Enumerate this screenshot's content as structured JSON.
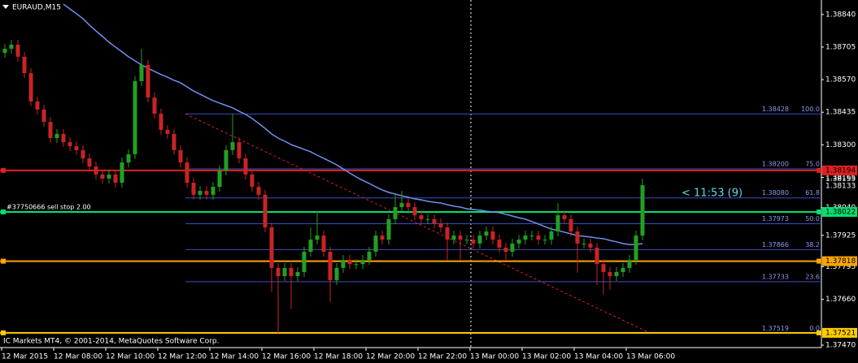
{
  "chart_data": {
    "type": "candlestick",
    "title": "EURAUD,M15",
    "footer": "IC Markets MT4, © 2001-2014, MetaQuotes Software Corp.",
    "categories": [
      "12 Mar 2015",
      null,
      null,
      null,
      null,
      null,
      null,
      null,
      "12 Mar 08:00",
      null,
      null,
      null,
      null,
      null,
      null,
      null,
      "12 Mar 10:00",
      null,
      null,
      null,
      null,
      null,
      null,
      null,
      "12 Mar 12:00",
      null,
      null,
      null,
      null,
      null,
      null,
      null,
      "12 Mar 14:00",
      null,
      null,
      null,
      null,
      null,
      null,
      null,
      "12 Mar 16:00",
      null,
      null,
      null,
      null,
      null,
      null,
      null,
      "12 Mar 18:00",
      null,
      null,
      null,
      null,
      null,
      null,
      null,
      "12 Mar 20:00",
      null,
      null,
      null,
      null,
      null,
      null,
      null,
      "12 Mar 22:00",
      null,
      null,
      null,
      null,
      null,
      null,
      null,
      "13 Mar 00:00",
      null,
      null,
      null,
      null,
      null,
      null,
      null,
      "13 Mar 02:00",
      null,
      null,
      null,
      null,
      null,
      null,
      null,
      "13 Mar 04:00",
      null,
      null,
      null,
      null,
      null,
      null,
      null,
      "13 Mar 06:00",
      null,
      null
    ],
    "open": [
      1.38681,
      1.38698,
      1.38715,
      1.38665,
      1.38597,
      1.3848,
      1.38446,
      1.38395,
      1.38328,
      1.38345,
      1.38311,
      1.38294,
      1.38278,
      1.38244,
      1.3821,
      1.38177,
      1.3816,
      1.38177,
      1.38143,
      1.38227,
      1.38261,
      1.38564,
      1.38631,
      1.38496,
      1.38429,
      1.38362,
      1.38345,
      1.38278,
      1.38227,
      1.38143,
      1.38093,
      1.38109,
      1.38093,
      1.38126,
      1.38194,
      1.38278,
      1.38311,
      1.38244,
      1.38177,
      1.38126,
      1.38093,
      1.37958,
      1.3779,
      1.37756,
      1.3779,
      1.37756,
      1.37773,
      1.37857,
      1.37907,
      1.37924,
      1.37857,
      1.37739,
      1.3779,
      1.37823,
      1.37806,
      1.37806,
      1.37823,
      1.37857,
      1.37924,
      1.37907,
      1.37992,
      1.38042,
      1.38059,
      1.38042,
      1.38008,
      1.37992,
      1.37992,
      1.37975,
      1.37958,
      1.37907,
      1.37924,
      1.37907,
      1.37907,
      1.37891,
      1.37924,
      1.37941,
      1.37907,
      1.37874,
      1.37857,
      1.37891,
      1.37907,
      1.37924,
      1.37924,
      1.37907,
      1.37907,
      1.37941,
      1.38008,
      1.37992,
      1.37941,
      1.37891,
      1.37891,
      1.37874,
      1.37806,
      1.37773,
      1.37756,
      1.37773,
      1.3779,
      1.37823,
      1.37924
    ],
    "high": [
      1.38718,
      1.38735,
      1.38735,
      1.38685,
      1.38617,
      1.385,
      1.38466,
      1.38415,
      1.38365,
      1.38365,
      1.38331,
      1.38314,
      1.38298,
      1.38264,
      1.3823,
      1.38197,
      1.38197,
      1.38197,
      1.38247,
      1.38281,
      1.38584,
      1.38698,
      1.38651,
      1.38516,
      1.38449,
      1.38382,
      1.38365,
      1.38298,
      1.38247,
      1.38163,
      1.38129,
      1.38129,
      1.38146,
      1.38214,
      1.38298,
      1.38429,
      1.38331,
      1.38264,
      1.38197,
      1.38146,
      1.38113,
      1.37978,
      1.3781,
      1.3781,
      1.3781,
      1.37793,
      1.37877,
      1.37958,
      1.38025,
      1.37944,
      1.37877,
      1.3781,
      1.37843,
      1.37843,
      1.37826,
      1.37843,
      1.37877,
      1.37944,
      1.37944,
      1.38012,
      1.38093,
      1.38109,
      1.38079,
      1.38062,
      1.38028,
      1.38012,
      1.38012,
      1.37995,
      1.37978,
      1.37944,
      1.37944,
      1.37927,
      1.37927,
      1.37944,
      1.37961,
      1.37961,
      1.37927,
      1.37894,
      1.37911,
      1.37927,
      1.37944,
      1.37944,
      1.37944,
      1.37927,
      1.37961,
      1.38059,
      1.38028,
      1.38012,
      1.37961,
      1.37911,
      1.37911,
      1.37894,
      1.37826,
      1.37793,
      1.37793,
      1.3781,
      1.37843,
      1.37944,
      1.3816
    ],
    "low": [
      1.38661,
      1.38678,
      1.38645,
      1.38577,
      1.3846,
      1.38426,
      1.38375,
      1.38308,
      1.38308,
      1.38291,
      1.38274,
      1.38258,
      1.38224,
      1.3819,
      1.38157,
      1.3814,
      1.3814,
      1.38123,
      1.38123,
      1.38207,
      1.38241,
      1.38544,
      1.38476,
      1.38409,
      1.38342,
      1.38325,
      1.38258,
      1.38207,
      1.38123,
      1.38073,
      1.38073,
      1.38073,
      1.38073,
      1.38106,
      1.38174,
      1.38258,
      1.38224,
      1.38157,
      1.38106,
      1.38073,
      1.37938,
      1.3769,
      1.37521,
      1.37736,
      1.3762,
      1.37736,
      1.37753,
      1.37837,
      1.37887,
      1.37837,
      1.3765,
      1.37719,
      1.3777,
      1.37786,
      1.37786,
      1.37786,
      1.37803,
      1.37837,
      1.37887,
      1.37887,
      1.37972,
      1.38022,
      1.38022,
      1.37988,
      1.37972,
      1.37972,
      1.37955,
      1.37938,
      1.37823,
      1.37887,
      1.37823,
      1.37887,
      1.37871,
      1.37871,
      1.37904,
      1.37887,
      1.37854,
      1.37823,
      1.37837,
      1.37871,
      1.37887,
      1.37904,
      1.37887,
      1.37887,
      1.37887,
      1.37921,
      1.37972,
      1.37921,
      1.37771,
      1.37871,
      1.37854,
      1.3772,
      1.3768,
      1.377,
      1.37736,
      1.37753,
      1.3777,
      1.37803,
      1.37904
    ],
    "close": [
      1.38698,
      1.38715,
      1.38665,
      1.38597,
      1.3848,
      1.38446,
      1.38395,
      1.38328,
      1.38345,
      1.38311,
      1.38294,
      1.38278,
      1.38244,
      1.3821,
      1.38177,
      1.3816,
      1.38177,
      1.38143,
      1.38227,
      1.38261,
      1.38564,
      1.38631,
      1.38496,
      1.38429,
      1.38362,
      1.38345,
      1.38278,
      1.38227,
      1.38143,
      1.38093,
      1.38109,
      1.38093,
      1.38126,
      1.38194,
      1.38278,
      1.38311,
      1.38244,
      1.38177,
      1.38126,
      1.38093,
      1.37958,
      1.3779,
      1.37756,
      1.3779,
      1.37756,
      1.37773,
      1.37857,
      1.37907,
      1.37924,
      1.37857,
      1.37739,
      1.3779,
      1.37823,
      1.37806,
      1.37806,
      1.37823,
      1.37857,
      1.37924,
      1.37907,
      1.37992,
      1.38042,
      1.38059,
      1.38042,
      1.38008,
      1.37992,
      1.37992,
      1.37975,
      1.37958,
      1.37907,
      1.37924,
      1.37907,
      1.37907,
      1.37891,
      1.37924,
      1.37941,
      1.37907,
      1.37874,
      1.37857,
      1.37891,
      1.37907,
      1.37924,
      1.37924,
      1.37907,
      1.37907,
      1.37941,
      1.38008,
      1.37992,
      1.37941,
      1.37891,
      1.37891,
      1.37874,
      1.37806,
      1.37773,
      1.37756,
      1.37773,
      1.3779,
      1.37823,
      1.37924,
      1.38133
    ],
    "up_color": "#22a022",
    "down_color": "#c82424",
    "moving_average": {
      "color": "#7090f0",
      "values": [
        null,
        null,
        null,
        null,
        null,
        null,
        null,
        null,
        null,
        1.38883,
        1.38863,
        1.38843,
        1.38823,
        1.38796,
        1.38772,
        1.38749,
        1.38725,
        1.38705,
        1.38685,
        1.38665,
        1.38648,
        1.38631,
        1.38617,
        1.38604,
        1.38591,
        1.3858,
        1.38567,
        1.38557,
        1.3854,
        1.38523,
        1.3851,
        1.38496,
        1.38483,
        1.38473,
        1.38463,
        1.38453,
        1.38439,
        1.38426,
        1.38409,
        1.38389,
        1.38368,
        1.38345,
        1.38328,
        1.38315,
        1.38301,
        1.38291,
        1.38281,
        1.38271,
        1.38257,
        1.38244,
        1.38231,
        1.38217,
        1.382,
        1.38183,
        1.38167,
        1.38153,
        1.3814,
        1.38126,
        1.38113,
        1.38103,
        1.38096,
        1.38089,
        1.38083,
        1.38076,
        1.38072,
        1.38066,
        1.38062,
        1.38059,
        1.38052,
        1.38046,
        1.38042,
        1.38035,
        1.38032,
        1.38029,
        1.38025,
        1.38022,
        1.38019,
        1.38012,
        1.38005,
        1.37998,
        1.37992,
        1.37982,
        1.37972,
        1.37961,
        1.37951,
        1.37945,
        1.37938,
        1.37931,
        1.37924,
        1.37921,
        1.37918,
        1.37914,
        1.37911,
        1.37904,
        1.37898,
        1.37891,
        1.37887,
        1.37887,
        1.37891
      ]
    },
    "ylim": [
      1.3746,
      1.389
    ],
    "yticks": [
      {
        "value": 1.3884,
        "label": "1.38840"
      },
      1.38705,
      {
        "value": 1.3857,
        "label": "1.38570"
      },
      1.38435,
      {
        "value": 1.383,
        "label": "1.38300"
      },
      1.38165,
      {
        "value": 1.3804,
        "label": "1.38040"
      },
      1.37925,
      1.37795,
      {
        "value": 1.3766,
        "label": "1.37660"
      },
      {
        "value": 1.3747,
        "label": "1.37470"
      }
    ],
    "fibonacci": {
      "color": "#3a4fc0",
      "label_color": "#8a9cf0",
      "trend_color": "#e02020",
      "levels": [
        {
          "price": 1.38428,
          "level": {
            "value": 100,
            "label": "100.0"
          }
        },
        {
          "price": {
            "value": 1.382,
            "label": "1.38200"
          },
          "level": {
            "value": 75,
            "label": "75.0"
          }
        },
        {
          "price": {
            "value": 1.3808,
            "label": "1.38080"
          },
          "level": 61.8
        },
        {
          "price": 1.37973,
          "level": {
            "value": 50,
            "label": "50.0"
          }
        },
        {
          "price": 1.37866,
          "level": 38.2
        },
        {
          "price": 1.37733,
          "level": 23.6
        },
        {
          "price": 1.37519,
          "level": {
            "value": 0,
            "label": "0.0"
          }
        }
      ]
    },
    "price_lines": [
      {
        "value": 1.38194,
        "color": "#e02020"
      },
      {
        "value": 1.38022,
        "color": "#00e070",
        "order_label": "#37750666 sell stop 2.00"
      },
      {
        "value": 1.37818,
        "color": "#ffa500"
      },
      {
        "value": 1.37521,
        "color": "#ffcc00"
      }
    ],
    "ask": 1.38155,
    "bid": 1.38133,
    "countdown": "< 11:53 (9)"
  }
}
